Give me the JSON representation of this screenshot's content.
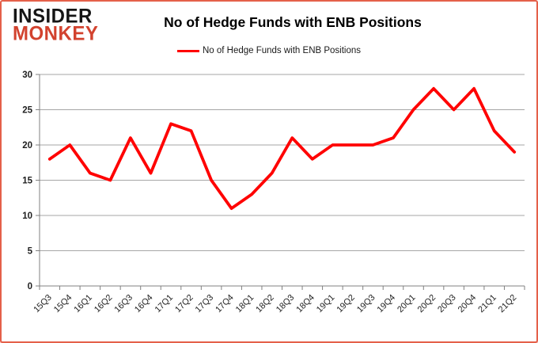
{
  "logo": {
    "line1": "INSIDER",
    "line2": "MONKEY"
  },
  "header": {
    "title": "No of Hedge Funds with ENB Positions"
  },
  "legend": {
    "label": "No of Hedge Funds with ENB Positions",
    "line_color": "#ff0000"
  },
  "chart_data": {
    "type": "line",
    "title": "No of Hedge Funds with ENB Positions",
    "categories": [
      "15Q3",
      "15Q4",
      "16Q1",
      "16Q2",
      "16Q3",
      "16Q4",
      "17Q1",
      "17Q2",
      "17Q3",
      "17Q4",
      "18Q1",
      "18Q2",
      "18Q3",
      "18Q4",
      "19Q1",
      "19Q2",
      "19Q3",
      "19Q4",
      "20Q1",
      "20Q2",
      "20Q3",
      "20Q4",
      "21Q1",
      "21Q2"
    ],
    "series": [
      {
        "name": "No of Hedge Funds with ENB Positions",
        "color": "#ff0000",
        "values": [
          18,
          20,
          16,
          15,
          21,
          16,
          23,
          22,
          15,
          11,
          13,
          16,
          21,
          18,
          20,
          20,
          20,
          21,
          25,
          28,
          25,
          28,
          22,
          19
        ]
      }
    ],
    "xlabel": "",
    "ylabel": "",
    "ylim": [
      0,
      30
    ],
    "ytick_step": 5,
    "grid": true,
    "legend_position": "top-center"
  },
  "colors": {
    "line_red": "#ff0000",
    "logo_black": "#151515",
    "logo_red": "#d2422e",
    "grid": "#a6a6a6",
    "axis": "#808080",
    "tick_text": "#1f1f1f"
  }
}
